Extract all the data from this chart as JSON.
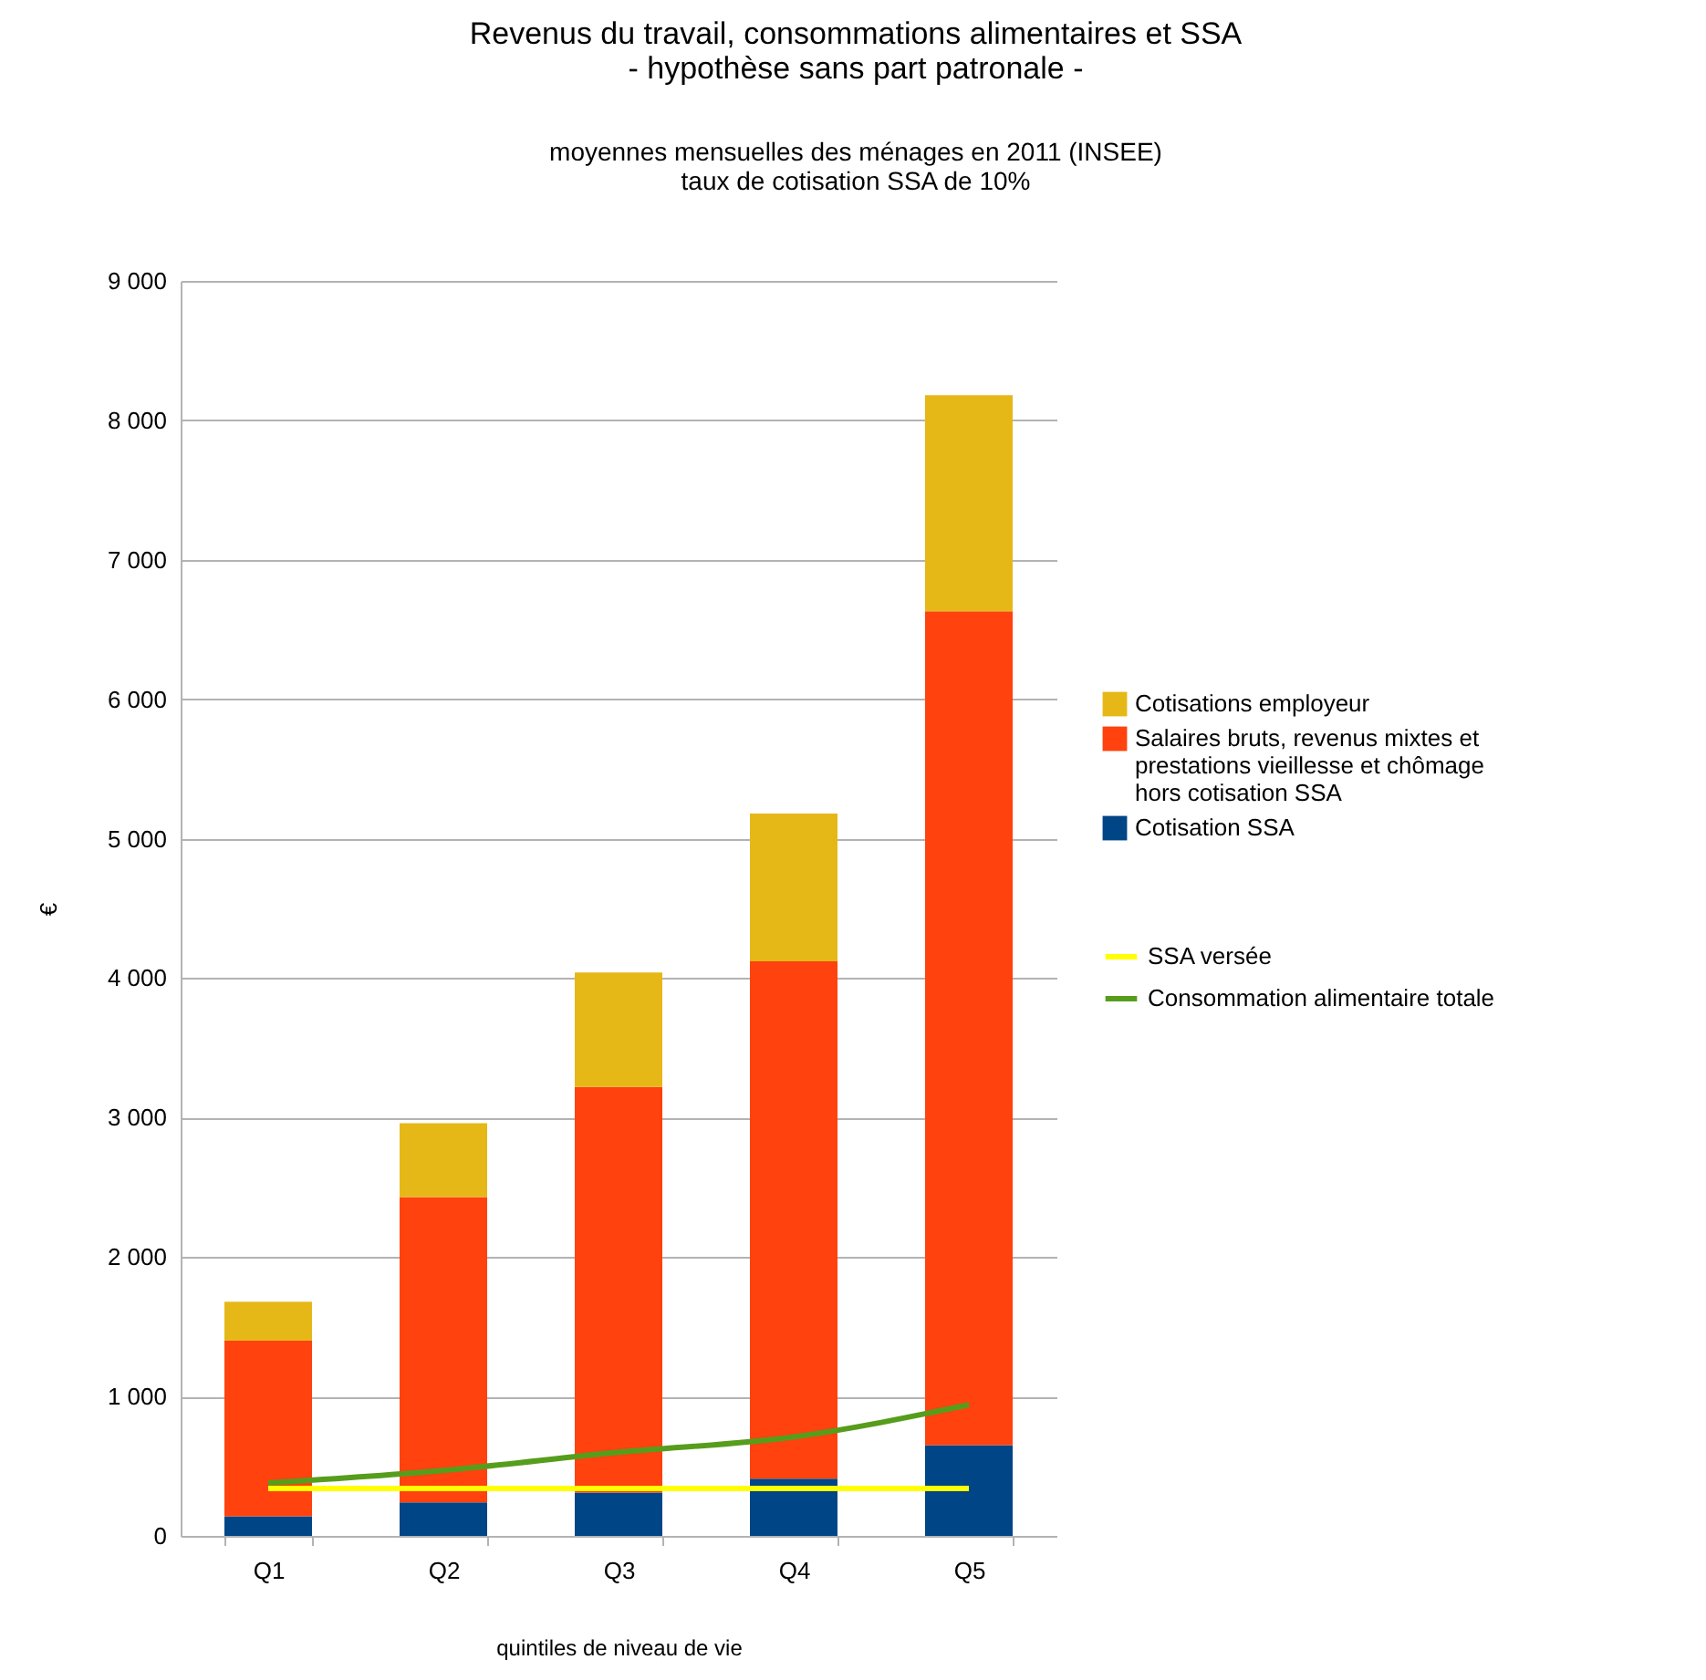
{
  "chart_data": {
    "type": "bar",
    "stacked": true,
    "title": "Revenus du travail, consommations alimentaires et SSA\n- hypothèse sans part patronale -",
    "subtitle": "moyennes mensuelles des ménages en 2011 (INSEE)\ntaux de cotisation SSA de 10%",
    "xlabel": "quintiles de niveau de vie",
    "ylabel": "€",
    "categories": [
      "Q1",
      "Q2",
      "Q3",
      "Q4",
      "Q5"
    ],
    "series": [
      {
        "name": "Cotisation SSA",
        "color": "#004586",
        "values": [
          140,
          240,
          310,
          410,
          650
        ]
      },
      {
        "name": "Salaires bruts, revenus mixtes et prestations vieillesse et chômage hors cotisation SSA",
        "color": "#ff420e",
        "values": [
          1260,
          2190,
          2910,
          3710,
          5980
        ]
      },
      {
        "name": "Cotisations employeur",
        "color": "#e6b817",
        "values": [
          280,
          530,
          820,
          1060,
          1550
        ]
      },
      {
        "name": "SSA versée",
        "type": "line",
        "color": "#ffff00",
        "values": [
          340,
          340,
          340,
          340,
          340
        ]
      },
      {
        "name": "Consommation alimentaire totale",
        "type": "line",
        "color": "#579d1c",
        "values": [
          380,
          470,
          600,
          710,
          940
        ]
      }
    ],
    "ylim": [
      0,
      9000
    ],
    "yticks": [
      0,
      {
        "value": 1000,
        "label": "1 000"
      },
      {
        "value": 2000,
        "label": "2 000"
      },
      {
        "value": 3000,
        "label": "3 000"
      },
      {
        "value": 4000,
        "label": "4 000"
      },
      {
        "value": 5000,
        "label": "5 000"
      },
      {
        "value": 6000,
        "label": "6 000"
      },
      {
        "value": 7000,
        "label": "7 000"
      },
      {
        "value": 8000,
        "label": "8 000"
      },
      {
        "value": 9000,
        "label": "9 000"
      }
    ],
    "grid": true,
    "legend": "right",
    "marker": "none",
    "line_style": "solid"
  }
}
